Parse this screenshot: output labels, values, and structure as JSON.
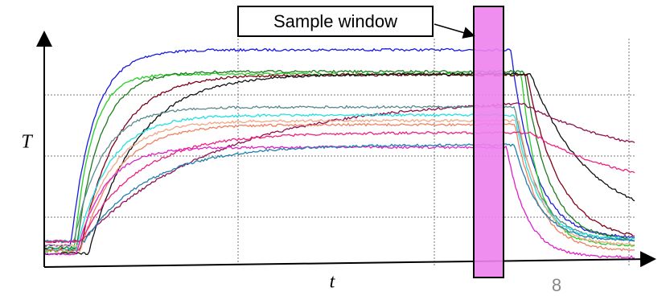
{
  "annotation": "Sample window",
  "y_axis_label": "T",
  "x_axis_label": "t",
  "page_number": "8"
}
